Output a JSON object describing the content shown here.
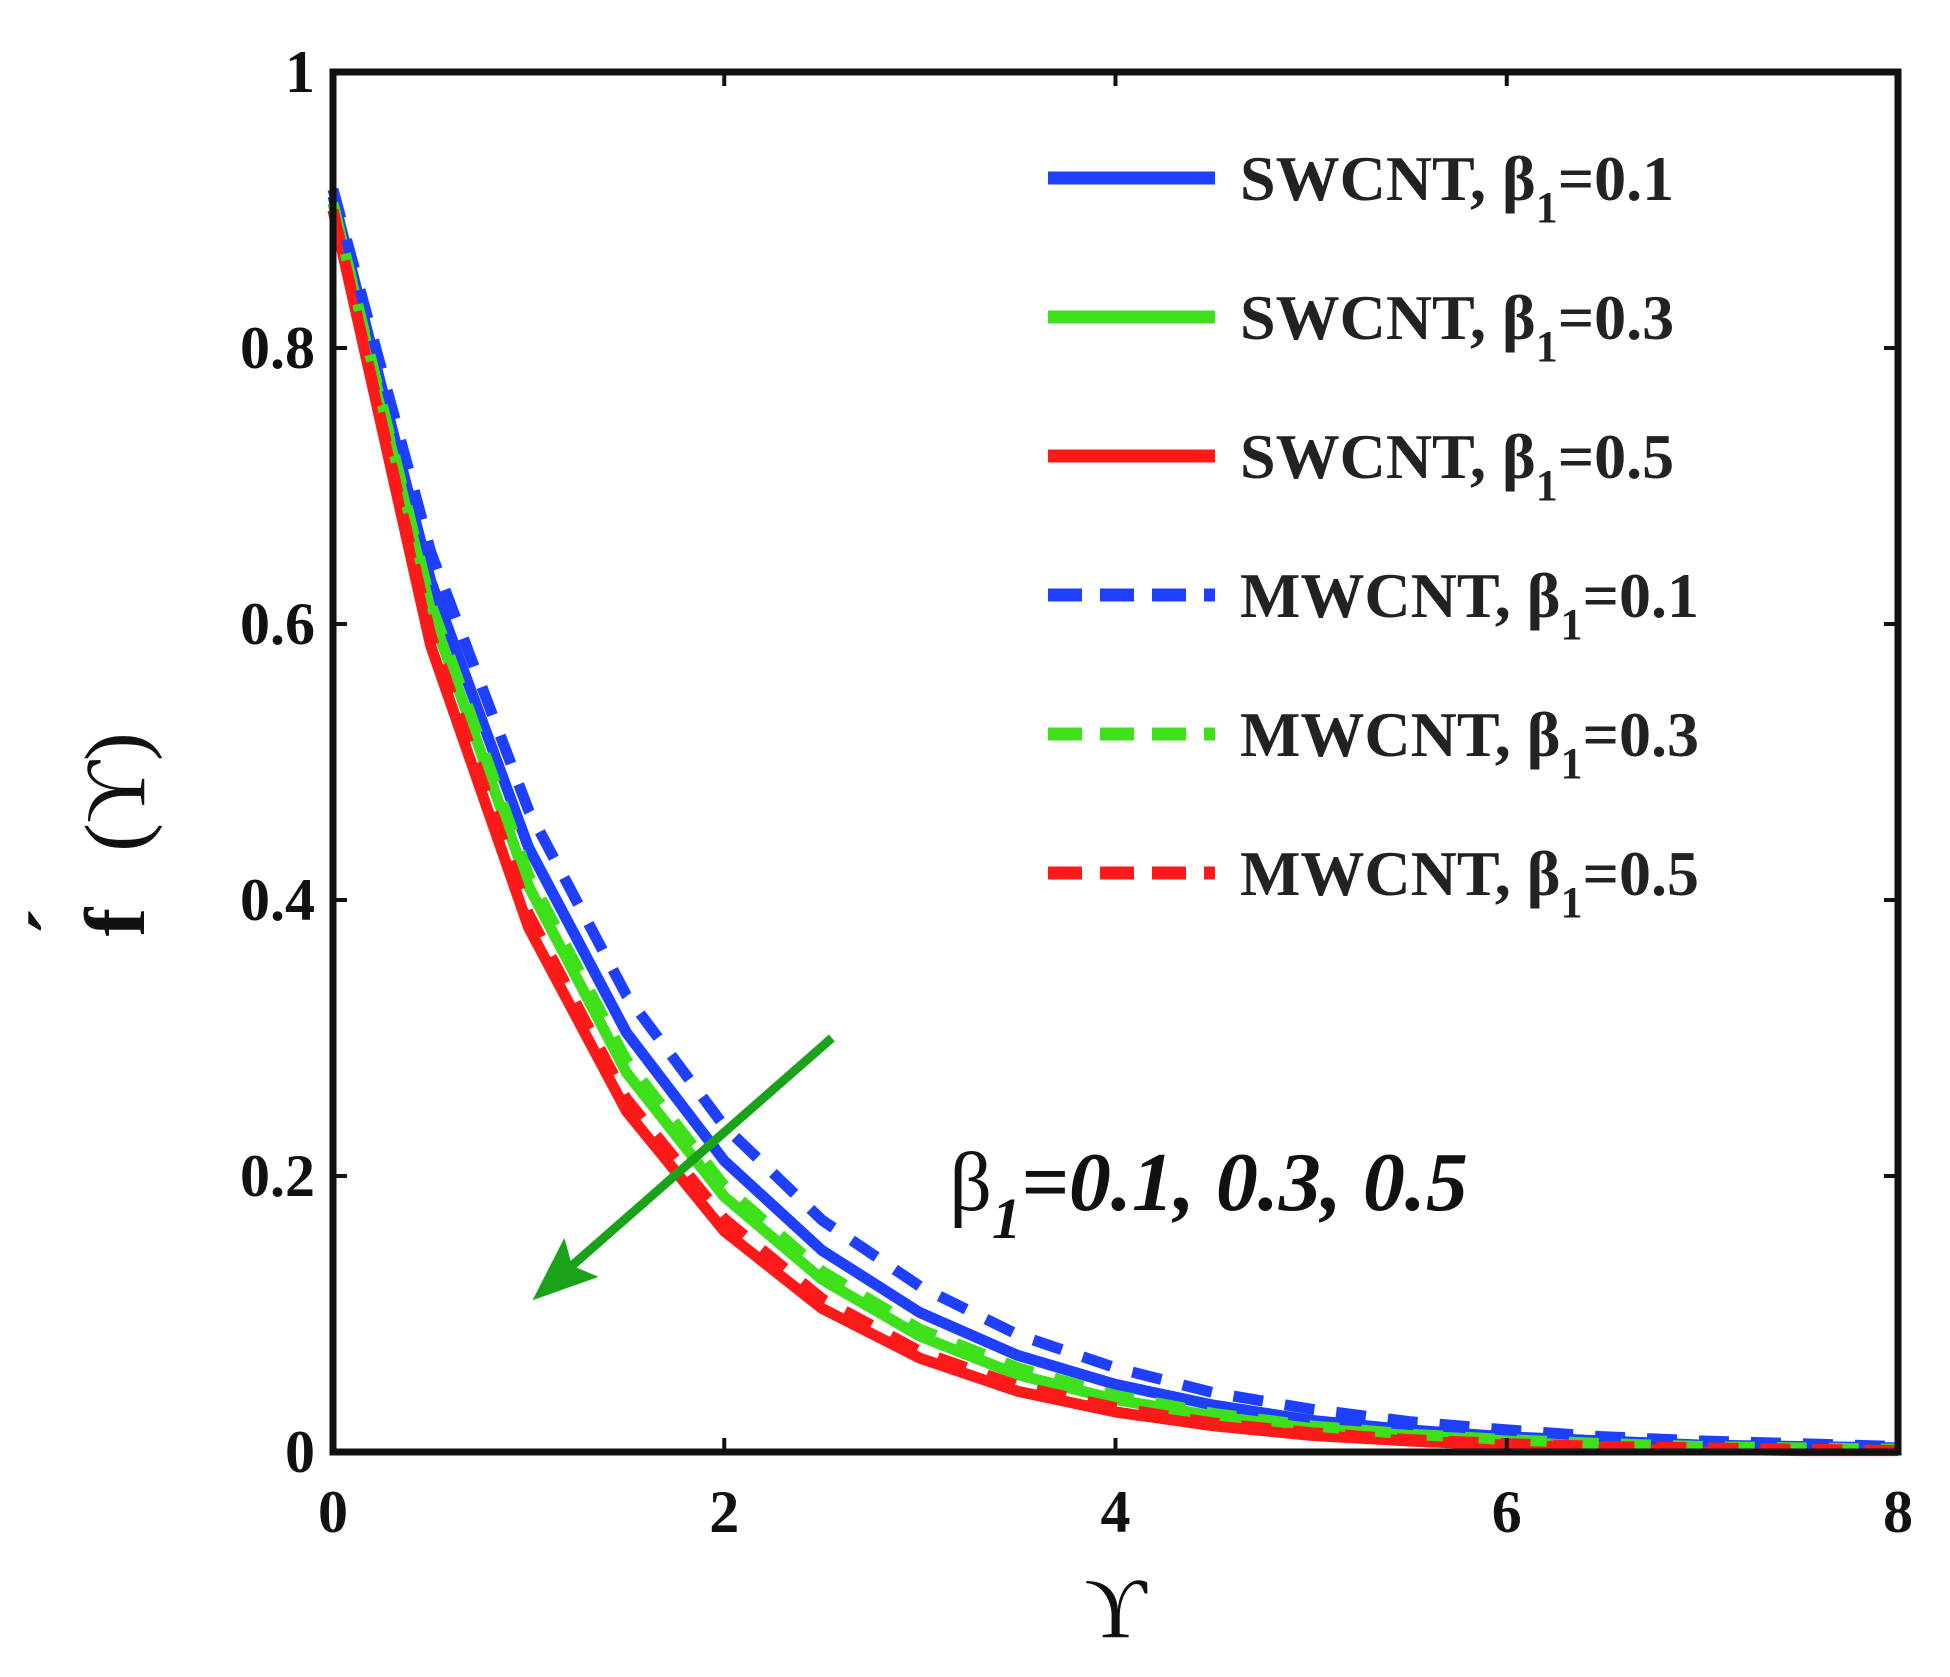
{
  "chart_data": {
    "type": "line",
    "title": "",
    "xlabel": "ϒ",
    "ylabel_main": "f",
    "ylabel_prime": "´",
    "ylabel_arg": "(ϒ)",
    "xlim": [
      0,
      8
    ],
    "ylim": [
      0,
      1
    ],
    "xticks": [
      0,
      2,
      4,
      6,
      8
    ],
    "yticks": [
      0,
      0.2,
      0.4,
      0.6,
      0.8,
      1
    ],
    "xtick_labels": [
      "0",
      "2",
      "4",
      "6",
      "8"
    ],
    "ytick_labels": [
      "0",
      "0.2",
      "0.4",
      "0.6",
      "0.8",
      "1"
    ],
    "grid": false,
    "legend_position": "top-right",
    "x": [
      0,
      0.5,
      1,
      1.5,
      2,
      2.5,
      3,
      3.5,
      4,
      4.5,
      5,
      5.5,
      6,
      6.5,
      7,
      7.5,
      8
    ],
    "series": [
      {
        "name": "SWCNT, β1=0.1",
        "legend_main": "SWCNT, β",
        "legend_sub": "1",
        "legend_tail": "=0.1",
        "color": "#1f3fff",
        "dash": "solid",
        "values": [
          0.91,
          0.631,
          0.438,
          0.304,
          0.211,
          0.146,
          0.101,
          0.07,
          0.049,
          0.034,
          0.023,
          0.016,
          0.011,
          0.008,
          0.005,
          0.004,
          0.003
        ]
      },
      {
        "name": "SWCNT, β1=0.3",
        "legend_main": "SWCNT, β",
        "legend_sub": "1",
        "legend_tail": "=0.3",
        "color": "#3ee01b",
        "dash": "solid",
        "values": [
          0.905,
          0.609,
          0.41,
          0.275,
          0.185,
          0.125,
          0.084,
          0.056,
          0.038,
          0.026,
          0.017,
          0.012,
          0.008,
          0.005,
          0.003,
          0.002,
          0.002
        ]
      },
      {
        "name": "SWCNT, β1=0.5",
        "legend_main": "SWCNT, β",
        "legend_sub": "1",
        "legend_tail": "=0.5",
        "color": "#ff1a1a",
        "dash": "solid",
        "values": [
          0.9,
          0.584,
          0.38,
          0.247,
          0.16,
          0.104,
          0.068,
          0.044,
          0.029,
          0.019,
          0.012,
          0.008,
          0.005,
          0.003,
          0.002,
          0.001,
          0.001
        ]
      },
      {
        "name": "MWCNT, β1=0.1",
        "legend_main": "MWCNT, β",
        "legend_sub": "1",
        "legend_tail": "=0.1",
        "color": "#1f3fff",
        "dash": "dashed",
        "values": [
          0.915,
          0.652,
          0.465,
          0.331,
          0.236,
          0.168,
          0.12,
          0.085,
          0.061,
          0.043,
          0.031,
          0.022,
          0.016,
          0.011,
          0.008,
          0.006,
          0.004
        ]
      },
      {
        "name": "MWCNT, β1=0.3",
        "legend_main": "MWCNT, β",
        "legend_sub": "1",
        "legend_tail": "=0.3",
        "color": "#3ee01b",
        "dash": "dashed",
        "values": [
          0.905,
          0.615,
          0.418,
          0.284,
          0.193,
          0.131,
          0.089,
          0.061,
          0.041,
          0.028,
          0.019,
          0.013,
          0.009,
          0.006,
          0.004,
          0.003,
          0.002
        ]
      },
      {
        "name": "MWCNT, β1=0.5",
        "legend_main": "MWCNT, β",
        "legend_sub": "1",
        "legend_tail": "=0.5",
        "color": "#ff1a1a",
        "dash": "dashed",
        "values": [
          0.9,
          0.592,
          0.39,
          0.256,
          0.169,
          0.111,
          0.073,
          0.048,
          0.032,
          0.021,
          0.014,
          0.009,
          0.006,
          0.004,
          0.003,
          0.002,
          0.001
        ]
      }
    ],
    "annotation": {
      "text_main": "β",
      "text_sub": "1",
      "text_tail": "=0.1, 0.3, 0.5",
      "arrow_color": "#1aa31a",
      "arrow_from": [
        2.55,
        0.3
      ],
      "arrow_to": [
        1.02,
        0.11
      ],
      "label_anchor": [
        3.15,
        0.19
      ]
    }
  }
}
